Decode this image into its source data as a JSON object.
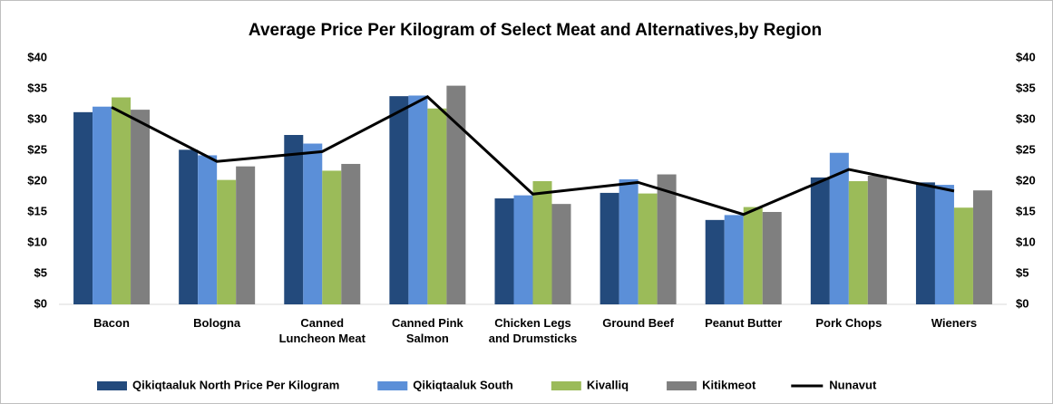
{
  "chart_data": {
    "type": "bar",
    "title": "Average Price Per Kilogram of Select Meat and Alternatives,by Region",
    "categories": [
      "Bacon",
      "Bologna",
      "Canned Luncheon Meat",
      "Canned Pink Salmon",
      "Chicken Legs and Drumsticks",
      "Ground Beef",
      "Peanut Butter",
      "Pork Chops",
      "Wieners"
    ],
    "series": [
      {
        "name": "Qikiqtaaluk North Price Per Kilogram",
        "type": "bar",
        "color": "#234a7c",
        "values": [
          31.2,
          25.1,
          27.5,
          33.8,
          17.2,
          18.1,
          13.7,
          20.6,
          19.8
        ]
      },
      {
        "name": "Qikiqtaaluk South",
        "type": "bar",
        "color": "#5b8fd8",
        "values": [
          32.1,
          24.2,
          26.1,
          33.9,
          17.7,
          20.3,
          14.5,
          24.6,
          19.4
        ]
      },
      {
        "name": "Kivalliq",
        "type": "bar",
        "color": "#9bbb59",
        "values": [
          33.6,
          20.2,
          21.7,
          31.8,
          20.0,
          18.0,
          15.8,
          20.0,
          15.7
        ]
      },
      {
        "name": "Kitikmeot",
        "type": "bar",
        "color": "#7f7f7f",
        "values": [
          31.6,
          22.4,
          22.8,
          35.5,
          16.3,
          21.1,
          15.0,
          20.9,
          18.5
        ]
      },
      {
        "name": "Nunavut",
        "type": "line",
        "color": "#000000",
        "values": [
          32.0,
          23.2,
          24.8,
          33.7,
          17.9,
          19.8,
          14.6,
          21.9,
          18.4
        ]
      }
    ],
    "ylim": [
      0,
      40
    ],
    "yticks": [
      {
        "value": 0,
        "label": "$0"
      },
      {
        "value": 5,
        "label": "$5"
      },
      {
        "value": 10,
        "label": "$10"
      },
      {
        "value": 15,
        "label": "$15"
      },
      {
        "value": 20,
        "label": "$20"
      },
      {
        "value": 25,
        "label": "$25"
      },
      {
        "value": 30,
        "label": "$30"
      },
      {
        "value": 35,
        "label": "$35"
      },
      {
        "value": 40,
        "label": "$40"
      }
    ],
    "y2lim": [
      0,
      40
    ],
    "y2ticks": [
      {
        "value": 0,
        "label": "$0"
      },
      {
        "value": 5,
        "label": "$5"
      },
      {
        "value": 10,
        "label": "$10"
      },
      {
        "value": 15,
        "label": "$15"
      },
      {
        "value": 20,
        "label": "$20"
      },
      {
        "value": 25,
        "label": "$25"
      },
      {
        "value": 30,
        "label": "$30"
      },
      {
        "value": 35,
        "label": "$35"
      },
      {
        "value": 40,
        "label": "$40"
      }
    ],
    "grid": false,
    "legend": "bottom"
  }
}
